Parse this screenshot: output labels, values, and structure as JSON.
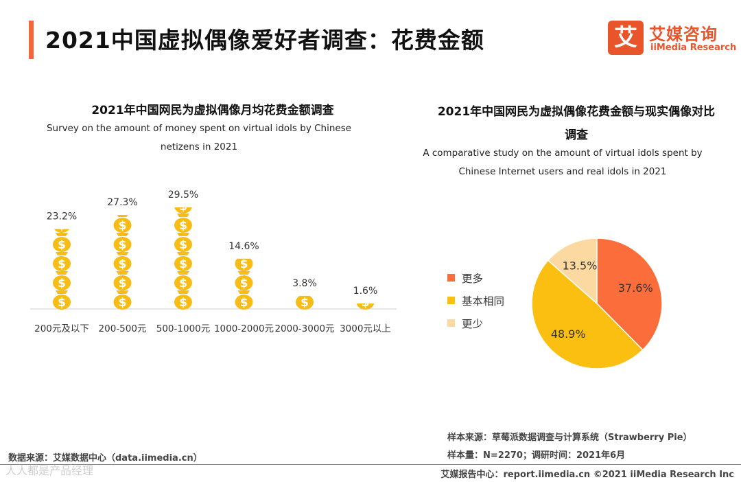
{
  "page": {
    "title": "2021中国虚拟偶像爱好者调查：花费金额",
    "logo": {
      "mark": "艾",
      "cn": "艾媒咨询",
      "en": "iiMedia Research"
    }
  },
  "colors": {
    "accent": "#f2683a",
    "coin": "#f7bd16",
    "coin_symbol": "#ffffff",
    "more": "#fb6d3a",
    "same": "#fbbf12",
    "less": "#fbd9a0"
  },
  "chart_data": [
    {
      "type": "bar",
      "title": "2021年中国网民为虚拟偶像月均花费金额调查",
      "subtitle": "Survey on the amount of money spent on virtual idols by Chinese netizens in 2021",
      "categories": [
        "200元及以下",
        "200-500元",
        "500-1000元",
        "1000-2000元",
        "2000-3000元",
        "3000元以上"
      ],
      "values": [
        23.2,
        27.3,
        29.5,
        14.6,
        3.8,
        1.6
      ],
      "value_labels": [
        "23.2%",
        "27.3%",
        "29.5%",
        "14.6%",
        "3.8%",
        "1.6%"
      ],
      "unit": "%",
      "ylim": [
        0,
        29.5
      ],
      "mark": "money-bag-stack"
    },
    {
      "type": "pie",
      "title": "2021年中国网民为虚拟偶像花费金额与现实偶像对比调查",
      "subtitle": "A comparative study on the amount of virtual idols spent by Chinese Internet users and real idols in 2021",
      "labels": [
        "更多",
        "基本相同",
        "更少"
      ],
      "values": [
        37.6,
        48.9,
        13.5
      ],
      "value_labels": [
        "37.6%",
        "48.9%",
        "13.5%"
      ],
      "colors": [
        "#fb6d3a",
        "#fbbf12",
        "#fbd9a0"
      ],
      "start": "12 o'clock, clockwise",
      "legend": "left"
    }
  ],
  "notes": {
    "source": "数据来源：艾媒数据中心（data.iimedia.cn）",
    "sample_source": "样本来源：草莓派数据调查与计算系统（Strawberry Pie）",
    "sample_size": "样本量：N=2270；调研时间：2021年6月",
    "footer": "艾媒报告中心：report.iimedia.cn   ©2021 iiMedia Research Inc",
    "watermark": "人人都是产品经理"
  }
}
